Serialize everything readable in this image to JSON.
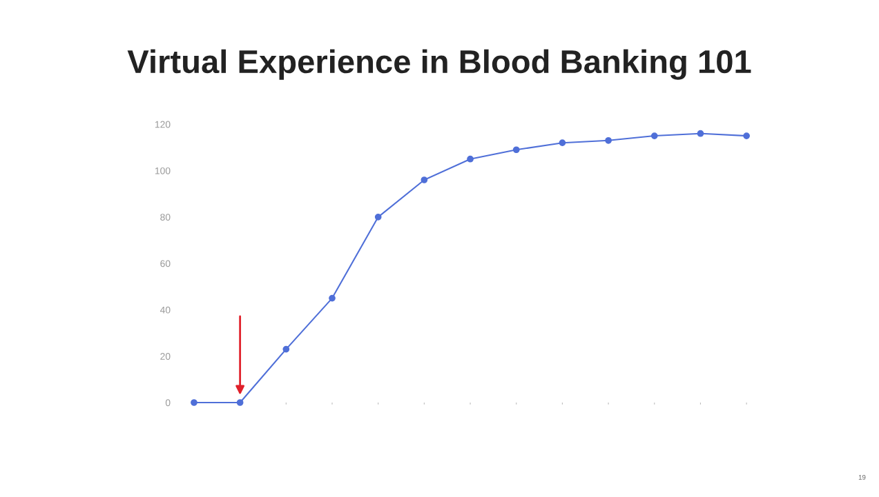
{
  "chart_data": {
    "type": "line",
    "title": "Virtual Experience in Blood Banking 101",
    "categories": [
      null,
      null,
      null,
      null,
      null,
      null,
      null,
      null,
      null,
      null,
      null,
      null,
      null
    ],
    "series": [
      {
        "color": "#4f6fd8",
        "values": [
          0,
          0,
          23,
          45,
          80,
          96,
          105,
          109,
          112,
          113,
          115,
          116,
          115
        ]
      }
    ],
    "ylim": [
      0,
      120
    ],
    "yticks": [
      0,
      20,
      40,
      60,
      80,
      100,
      120
    ],
    "marker": "circle",
    "line_style": "solid",
    "grid": false,
    "annotations": [
      "19"
    ]
  }
}
